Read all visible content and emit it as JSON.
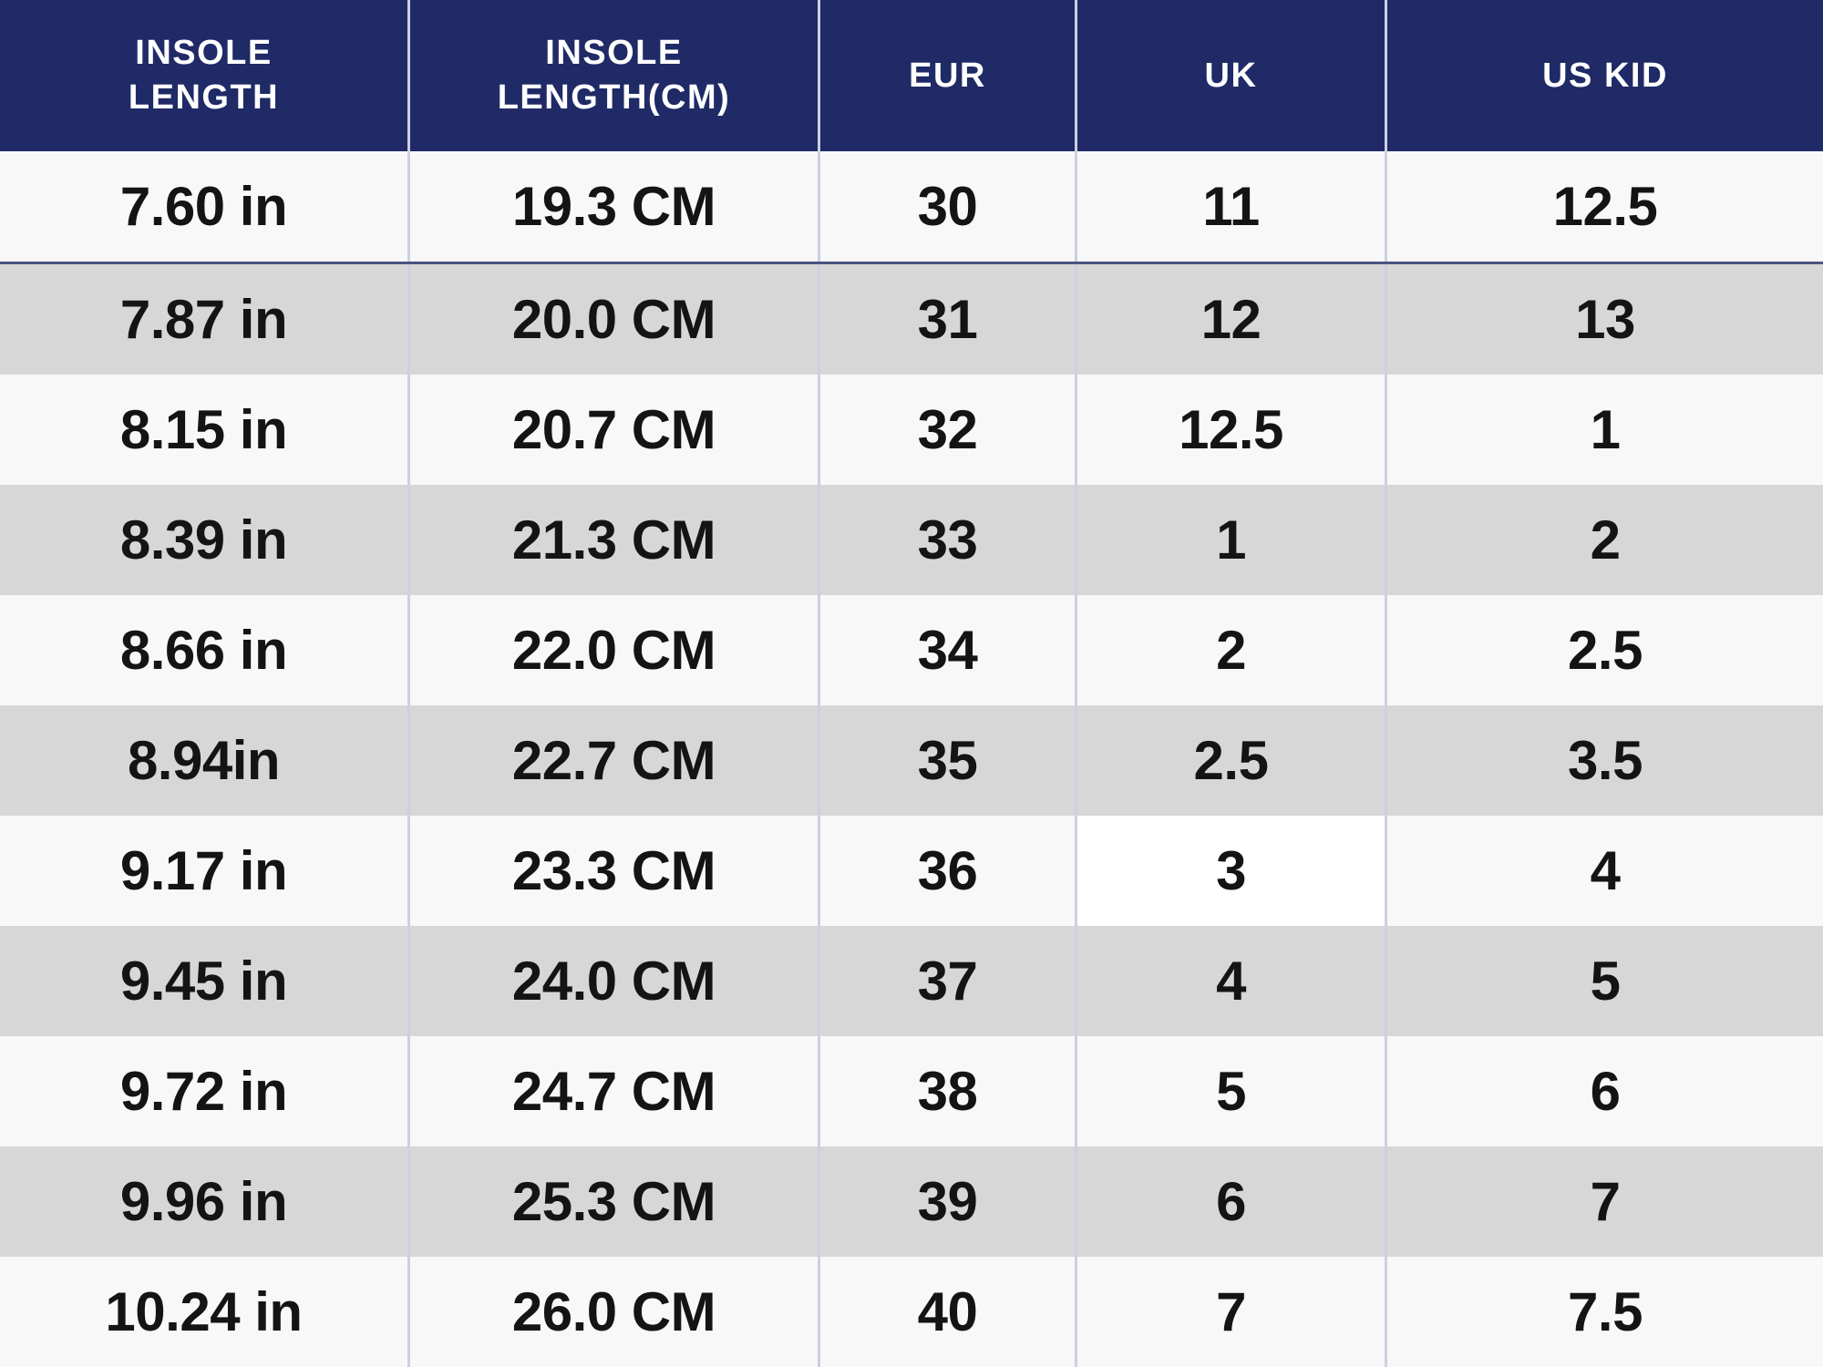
{
  "chart_data": {
    "type": "table",
    "columns": [
      "INSOLE\nLENGTH",
      "INSOLE\nLENGTH(CM)",
      "EUR",
      "UK",
      "US KID"
    ],
    "rows": [
      [
        "7.60 in",
        "19.3 CM",
        "30",
        "11",
        "12.5"
      ],
      [
        "7.87 in",
        "20.0 CM",
        "31",
        "12",
        "13"
      ],
      [
        "8.15 in",
        "20.7 CM",
        "32",
        "12.5",
        "1"
      ],
      [
        "8.39 in",
        "21.3 CM",
        "33",
        "1",
        "2"
      ],
      [
        "8.66 in",
        "22.0 CM",
        "34",
        "2",
        "2.5"
      ],
      [
        "8.94in",
        "22.7 CM",
        "35",
        "2.5",
        "3.5"
      ],
      [
        "9.17 in",
        "23.3 CM",
        "36",
        "3",
        "4"
      ],
      [
        "9.45 in",
        "24.0 CM",
        "37",
        "4",
        "5"
      ],
      [
        "9.72 in",
        "24.7 CM",
        "38",
        "5",
        "6"
      ],
      [
        "9.96 in",
        "25.3 CM",
        "39",
        "6",
        "7"
      ],
      [
        "10.24 in",
        "26.0 CM",
        "40",
        "7",
        "7.5"
      ]
    ],
    "highlight_cell": {
      "row_index": 6,
      "col_index": 3,
      "note": "white highlighted cell (UK 3)"
    },
    "layout_hints": {
      "header_bg": "#1f2a66",
      "header_text_color": "#ffffff",
      "row_alt_colors": [
        "#f8f8f9",
        "#d7d7d7"
      ],
      "first_row_bottom_rule_color": "#4a5380",
      "column_separator_color": "#ccd1e0",
      "grid": "vertical separators only"
    }
  }
}
